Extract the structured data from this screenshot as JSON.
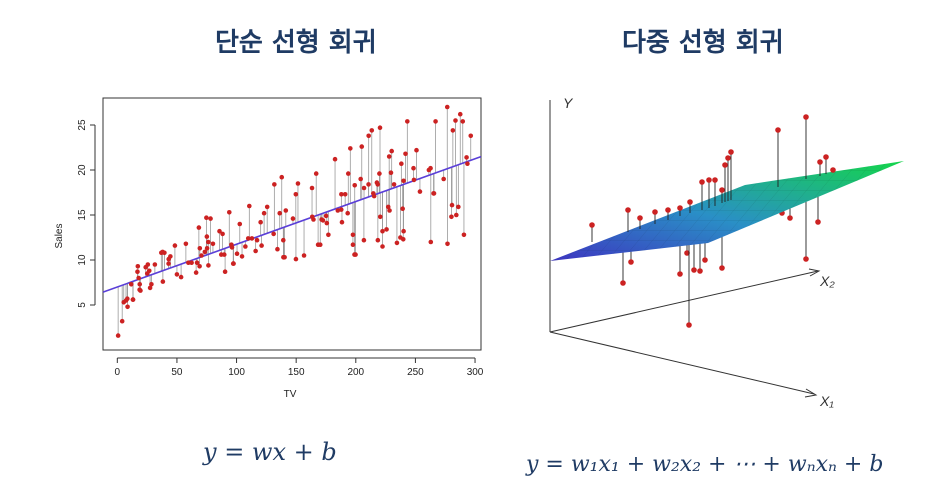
{
  "titles": {
    "left": "단순 선형 회귀",
    "right": "다중 선형 회귀"
  },
  "formulas": {
    "left": "y = wx + b",
    "right": "y = w₁x₁ +  w₂x₂ + ⋯ + wₙxₙ + b"
  },
  "colors": {
    "title": "#1f3b64",
    "point": "#cc2222",
    "fit_line": "#5a3fd8",
    "plane_low": "#3a3fbf",
    "plane_high": "#18d050"
  },
  "chart_data": [
    {
      "type": "scatter",
      "title": "",
      "xlabel": "TV",
      "ylabel": "Sales",
      "xlim": [
        -12,
        305
      ],
      "ylim": [
        0,
        28
      ],
      "xticks": [
        0,
        50,
        100,
        150,
        200,
        250,
        300
      ],
      "yticks": [
        5,
        10,
        15,
        20,
        25
      ],
      "grid": false,
      "fit_line": {
        "intercept": 7.0,
        "slope": 0.0475
      },
      "points": [
        [
          0.7,
          1.6
        ],
        [
          4.1,
          3.2
        ],
        [
          5.4,
          5.3
        ],
        [
          7.3,
          5.5
        ],
        [
          8.4,
          5.7
        ],
        [
          8.6,
          4.8
        ],
        [
          11.7,
          7.3
        ],
        [
          13.1,
          5.6
        ],
        [
          13.2,
          5.6
        ],
        [
          16.9,
          8.7
        ],
        [
          17.2,
          9.3
        ],
        [
          17.9,
          8.0
        ],
        [
          18.7,
          6.7
        ],
        [
          18.8,
          7.3
        ],
        [
          19.4,
          6.6
        ],
        [
          23.8,
          9.2
        ],
        [
          25.1,
          8.5
        ],
        [
          25.6,
          9.5
        ],
        [
          26.8,
          8.8
        ],
        [
          27.5,
          6.9
        ],
        [
          28.6,
          7.3
        ],
        [
          31.5,
          9.5
        ],
        [
          36.9,
          10.8
        ],
        [
          38.0,
          10.9
        ],
        [
          38.2,
          7.6
        ],
        [
          39.5,
          10.8
        ],
        [
          43.0,
          9.6
        ],
        [
          43.1,
          10.1
        ],
        [
          44.5,
          10.4
        ],
        [
          48.3,
          11.6
        ],
        [
          50.0,
          8.4
        ],
        [
          53.5,
          8.1
        ],
        [
          57.5,
          11.8
        ],
        [
          59.6,
          9.7
        ],
        [
          62.3,
          9.7
        ],
        [
          66.1,
          8.6
        ],
        [
          66.9,
          9.7
        ],
        [
          68.4,
          13.6
        ],
        [
          69.0,
          9.3
        ],
        [
          69.2,
          11.3
        ],
        [
          70.6,
          10.5
        ],
        [
          73.4,
          10.9
        ],
        [
          74.7,
          14.7
        ],
        [
          75.1,
          12.6
        ],
        [
          75.3,
          11.3
        ],
        [
          76.3,
          12.0
        ],
        [
          76.4,
          9.4
        ],
        [
          78.2,
          14.6
        ],
        [
          80.2,
          11.8
        ],
        [
          85.7,
          13.2
        ],
        [
          87.2,
          10.6
        ],
        [
          88.3,
          12.9
        ],
        [
          89.7,
          10.6
        ],
        [
          90.4,
          8.7
        ],
        [
          93.9,
          15.3
        ],
        [
          95.7,
          11.7
        ],
        [
          96.2,
          11.4
        ],
        [
          97.2,
          9.6
        ],
        [
          97.5,
          9.6
        ],
        [
          100.4,
          10.7
        ],
        [
          102.7,
          14.0
        ],
        [
          104.6,
          10.4
        ],
        [
          107.4,
          11.5
        ],
        [
          109.8,
          12.4
        ],
        [
          110.7,
          16.0
        ],
        [
          112.9,
          12.4
        ],
        [
          116.0,
          11.0
        ],
        [
          117.2,
          12.2
        ],
        [
          120.2,
          14.2
        ],
        [
          121.0,
          11.6
        ],
        [
          123.1,
          15.2
        ],
        [
          125.7,
          15.9
        ],
        [
          131.1,
          12.9
        ],
        [
          131.7,
          18.4
        ],
        [
          134.3,
          11.2
        ],
        [
          136.2,
          15.2
        ],
        [
          137.9,
          19.2
        ],
        [
          139.2,
          12.2
        ],
        [
          139.3,
          10.3
        ],
        [
          139.5,
          10.3
        ],
        [
          140.3,
          10.3
        ],
        [
          141.3,
          15.5
        ],
        [
          147.3,
          14.6
        ],
        [
          149.7,
          17.3
        ],
        [
          149.8,
          10.1
        ],
        [
          151.5,
          18.5
        ],
        [
          156.6,
          10.5
        ],
        [
          163.3,
          18.0
        ],
        [
          163.5,
          14.8
        ],
        [
          164.5,
          14.5
        ],
        [
          166.8,
          19.6
        ],
        [
          168.4,
          11.7
        ],
        [
          170.2,
          11.7
        ],
        [
          171.3,
          14.5
        ],
        [
          172.5,
          14.4
        ],
        [
          175.1,
          14.9
        ],
        [
          175.7,
          14.1
        ],
        [
          177.0,
          12.8
        ],
        [
          182.6,
          21.2
        ],
        [
          184.9,
          15.5
        ],
        [
          187.8,
          15.6
        ],
        [
          187.9,
          17.3
        ],
        [
          188.4,
          14.2
        ],
        [
          191.1,
          17.3
        ],
        [
          193.2,
          15.2
        ],
        [
          193.7,
          19.6
        ],
        [
          195.4,
          22.4
        ],
        [
          197.6,
          11.7
        ],
        [
          197.6,
          12.8
        ],
        [
          198.9,
          10.6
        ],
        [
          199.1,
          18.3
        ],
        [
          199.8,
          10.6
        ],
        [
          204.1,
          19.0
        ],
        [
          205.0,
          22.6
        ],
        [
          206.8,
          12.2
        ],
        [
          206.9,
          18.0
        ],
        [
          210.8,
          23.8
        ],
        [
          210.7,
          18.4
        ],
        [
          213.4,
          24.4
        ],
        [
          214.7,
          17.4
        ],
        [
          215.4,
          17.1
        ],
        [
          217.7,
          18.6
        ],
        [
          218.4,
          18.4
        ],
        [
          218.5,
          12.2
        ],
        [
          219.8,
          19.6
        ],
        [
          220.3,
          24.7
        ],
        [
          220.5,
          14.8
        ],
        [
          222.4,
          11.5
        ],
        [
          222.4,
          13.2
        ],
        [
          225.8,
          13.4
        ],
        [
          227.2,
          15.9
        ],
        [
          228.0,
          21.5
        ],
        [
          228.3,
          15.5
        ],
        [
          229.5,
          19.7
        ],
        [
          230.1,
          22.1
        ],
        [
          232.1,
          18.4
        ],
        [
          234.5,
          11.9
        ],
        [
          237.4,
          12.5
        ],
        [
          238.2,
          20.7
        ],
        [
          239.3,
          15.7
        ],
        [
          239.8,
          12.3
        ],
        [
          240.1,
          18.8
        ],
        [
          240.1,
          13.2
        ],
        [
          241.7,
          21.8
        ],
        [
          243.2,
          25.4
        ],
        [
          248.4,
          20.2
        ],
        [
          248.8,
          18.9
        ],
        [
          250.9,
          22.2
        ],
        [
          253.8,
          17.6
        ],
        [
          261.3,
          20.0
        ],
        [
          262.7,
          20.2
        ],
        [
          262.9,
          12.0
        ],
        [
          265.2,
          17.4
        ],
        [
          265.6,
          17.4
        ],
        [
          266.9,
          25.4
        ],
        [
          273.7,
          19.0
        ],
        [
          276.7,
          27.0
        ],
        [
          276.9,
          11.8
        ],
        [
          280.2,
          14.8
        ],
        [
          280.7,
          16.1
        ],
        [
          281.4,
          24.4
        ],
        [
          283.6,
          25.5
        ],
        [
          284.3,
          15.0
        ],
        [
          286.0,
          15.9
        ],
        [
          287.6,
          26.2
        ],
        [
          289.7,
          25.4
        ],
        [
          290.7,
          12.8
        ],
        [
          292.9,
          21.4
        ],
        [
          293.6,
          20.7
        ],
        [
          296.4,
          23.8
        ]
      ]
    },
    {
      "type": "scatter",
      "title": "",
      "xlabel": "X₁",
      "ylabel": "Y",
      "zlabel": "X₂",
      "grid": false
    }
  ]
}
